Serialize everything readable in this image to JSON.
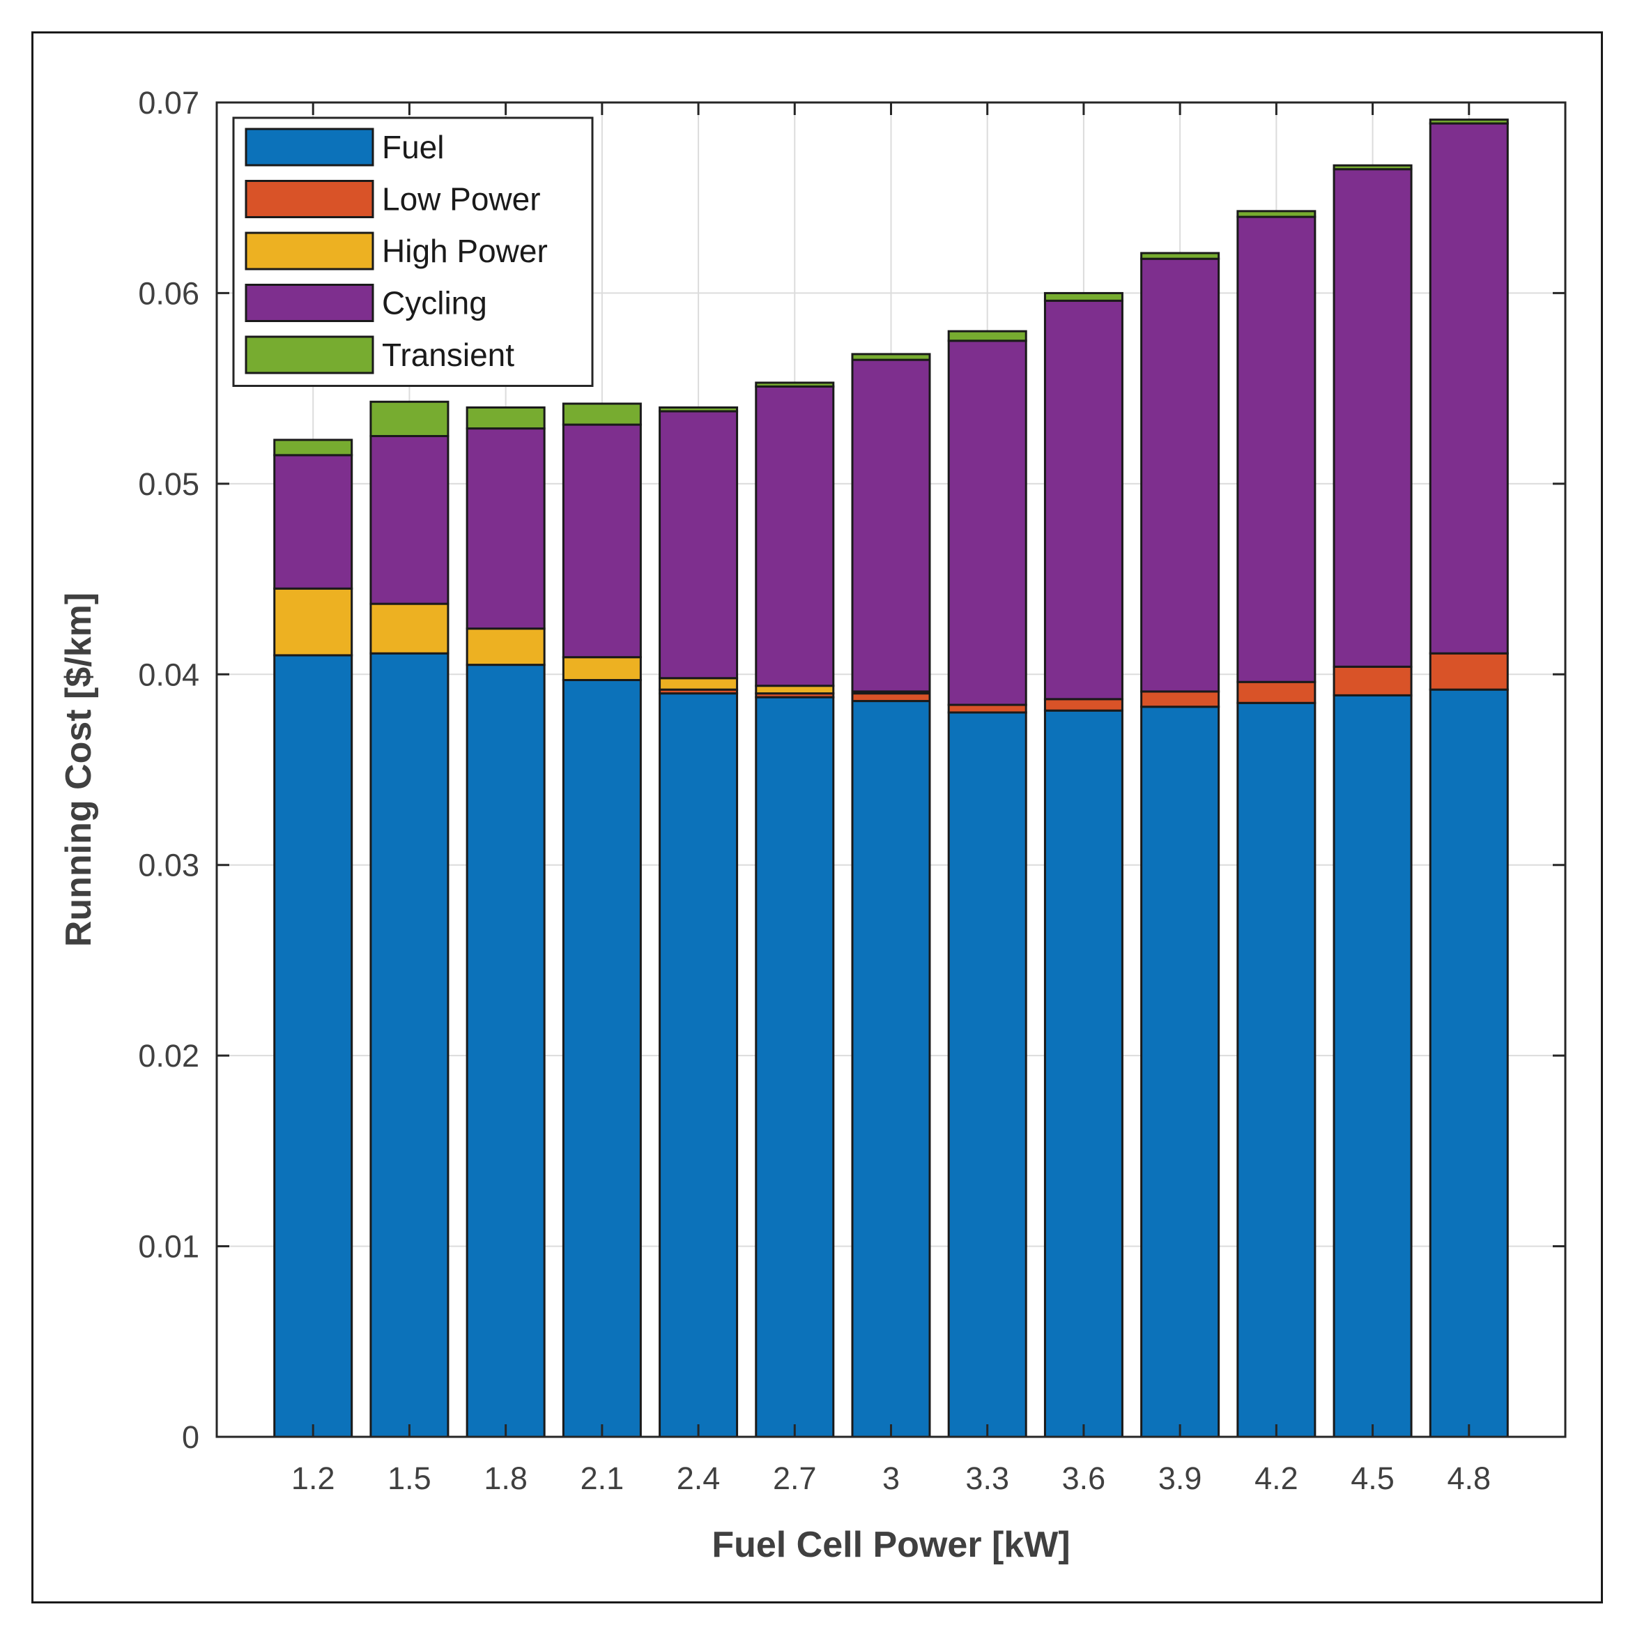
{
  "chart_data": {
    "type": "bar",
    "stacked": true,
    "title": "",
    "xlabel": "Fuel Cell Power [kW]",
    "ylabel": "Running Cost [$/km]",
    "ylim": [
      0,
      0.07
    ],
    "yticks": [
      0,
      0.01,
      0.02,
      0.03,
      0.04,
      0.05,
      0.06,
      0.07
    ],
    "ytick_labels": [
      "0",
      "0.01",
      "0.02",
      "0.03",
      "0.04",
      "0.05",
      "0.06",
      "0.07"
    ],
    "grid": true,
    "legend_position": "top-left",
    "categories": [
      "1.2",
      "1.5",
      "1.8",
      "2.1",
      "2.4",
      "2.7",
      "3",
      "3.3",
      "3.6",
      "3.9",
      "4.2",
      "4.5",
      "4.8"
    ],
    "series": [
      {
        "name": "Fuel",
        "color": "#0C72BA",
        "values": [
          0.041,
          0.0411,
          0.0405,
          0.0397,
          0.039,
          0.0388,
          0.0386,
          0.038,
          0.0381,
          0.0383,
          0.0385,
          0.0389,
          0.0392
        ]
      },
      {
        "name": "Low Power",
        "color": "#D95328",
        "values": [
          0.0,
          0.0,
          0.0,
          0.0,
          0.0002,
          0.0002,
          0.0004,
          0.0004,
          0.0006,
          0.0008,
          0.0011,
          0.0015,
          0.0019
        ]
      },
      {
        "name": "High Power",
        "color": "#EDB122",
        "values": [
          0.0035,
          0.0026,
          0.0019,
          0.0012,
          0.0006,
          0.0004,
          0.0001,
          0.0,
          0.0,
          0.0,
          0.0,
          0.0,
          0.0
        ]
      },
      {
        "name": "Cycling",
        "color": "#7E2F8E",
        "values": [
          0.007,
          0.0088,
          0.0105,
          0.0122,
          0.014,
          0.0157,
          0.0174,
          0.0191,
          0.0209,
          0.0227,
          0.0244,
          0.0261,
          0.0278
        ]
      },
      {
        "name": "Transient",
        "color": "#77AC30",
        "values": [
          0.0008,
          0.0018,
          0.0011,
          0.0011,
          0.0002,
          0.0002,
          0.0003,
          0.0005,
          0.0004,
          0.0003,
          0.0003,
          0.0002,
          0.0002
        ]
      }
    ]
  }
}
